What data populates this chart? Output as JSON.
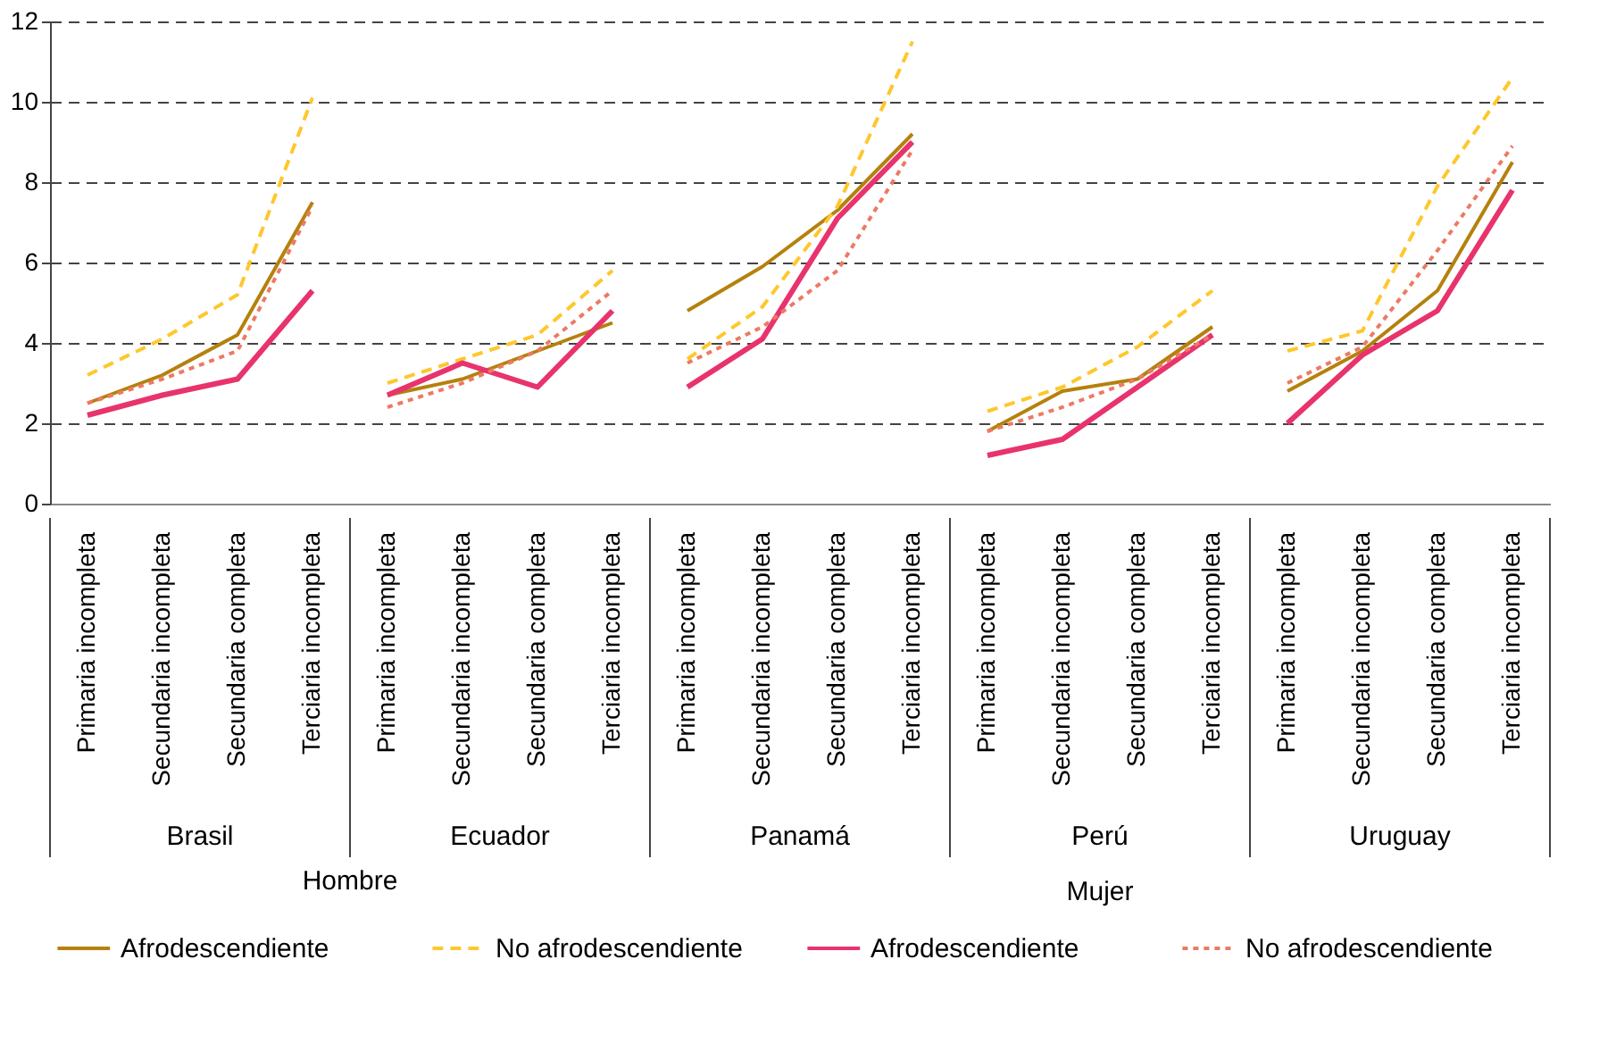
{
  "chart_data": {
    "type": "line",
    "categories": [
      "Primaria incompleta",
      "Secundaria incompleta",
      "Secundaria completa",
      "Terciaria incompleta",
      "Primaria incompleta",
      "Secundaria incompleta",
      "Secundaria completa",
      "Terciaria incompleta",
      "Primaria incompleta",
      "Secundaria incompleta",
      "Secundaria completa",
      "Terciaria incompleta",
      "Primaria incompleta",
      "Secundaria incompleta",
      "Secundaria completa",
      "Terciaria incompleta",
      "Primaria incompleta",
      "Secundaria incompleta",
      "Secundaria completa",
      "Terciaria incompleta"
    ],
    "series": [
      {
        "name": "Afrodescendiente",
        "color": "#b5810d",
        "line_style": "solid",
        "values": [
          2.5,
          3.2,
          4.2,
          7.5,
          2.7,
          3.1,
          3.8,
          4.5,
          4.8,
          5.9,
          7.3,
          9.2,
          1.8,
          2.8,
          3.1,
          4.4,
          2.8,
          3.8,
          5.3,
          8.5
        ]
      },
      {
        "name": "No afrodescendiente",
        "color": "#ffc72c",
        "line_style": "dashed",
        "values": [
          3.2,
          4.1,
          5.2,
          10.1,
          3.0,
          3.6,
          4.2,
          5.8,
          3.6,
          4.9,
          7.4,
          11.5,
          2.3,
          2.9,
          3.9,
          5.3,
          3.8,
          4.3,
          7.9,
          10.6
        ]
      },
      {
        "name": "Afrodescendiente",
        "color": "#e8336d",
        "line_style": "solid",
        "values": [
          2.2,
          2.7,
          3.1,
          5.3,
          2.7,
          3.5,
          2.9,
          4.8,
          2.9,
          4.1,
          7.1,
          9.0,
          1.2,
          1.6,
          2.9,
          4.2,
          2.0,
          3.7,
          4.8,
          7.8
        ]
      },
      {
        "name": "No afrodescendiente",
        "color": "#ec7a63",
        "line_style": "dotted",
        "values": [
          2.5,
          3.1,
          3.8,
          7.4,
          2.4,
          3.0,
          3.8,
          5.3,
          3.5,
          4.4,
          5.8,
          8.8,
          1.8,
          2.4,
          3.1,
          4.2,
          3.0,
          3.9,
          6.3,
          8.9
        ]
      }
    ],
    "ylim": [
      0,
      12
    ],
    "yticks": [
      0,
      2,
      4,
      6,
      8,
      10,
      12
    ],
    "grid": "y",
    "legend": "bottom",
    "annotations": [
      "Brasil",
      "Ecuador",
      "Panamá",
      "Perú",
      "Uruguay",
      "Hombre",
      "Mujer"
    ]
  }
}
